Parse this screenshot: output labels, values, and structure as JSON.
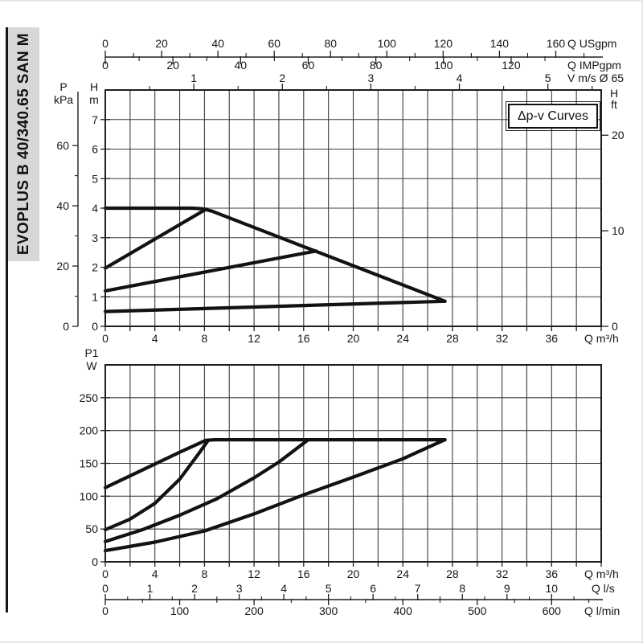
{
  "sidebar": {
    "model": "EVOPLUS B 40/340.65 SAN M",
    "bg": "#d7d7d7",
    "rule_color": "#161616"
  },
  "colors": {
    "curve": "#121212",
    "grid": "#3c3c3c",
    "border": "#1f1f1f",
    "text": "#161616"
  },
  "chart_data": [
    {
      "id": "head-vs-flow",
      "type": "line",
      "annotation": "Δp-v Curves",
      "xlim": [
        0,
        40
      ],
      "ylim": [
        0,
        8
      ],
      "grid": {
        "x_step": 2,
        "y_step": 1
      },
      "axes": {
        "x_bottom": {
          "unit": "Q m³/h",
          "tick_labels": [
            0,
            4,
            8,
            12,
            16,
            20,
            24,
            28,
            32,
            36
          ],
          "tick_step": 2
        },
        "x_usgpm": {
          "unit": "Q USgpm",
          "tick_labels": [
            0,
            20,
            40,
            60,
            80,
            100,
            120,
            140,
            160
          ],
          "minor_step": 10,
          "to_m3h": 0.2271
        },
        "x_impgpm": {
          "unit": "Q IMPgpm",
          "tick_labels": [
            0,
            20,
            40,
            60,
            80,
            100,
            120
          ],
          "minor_step": 10,
          "to_m3h": 0.2728
        },
        "x_velocity": {
          "unit": "V m/s Ø 65",
          "tick_labels": [
            1,
            2,
            3,
            4,
            5
          ],
          "minor_step": 0.5,
          "to_m3h": 7.14
        },
        "y_kpa": {
          "unit_lines": [
            "P",
            "kPa"
          ],
          "tick_labels": [
            0,
            20,
            40,
            60
          ],
          "minor_step": 10,
          "to_m": 0.102
        },
        "y_m": {
          "unit_lines": [
            "H",
            "m"
          ],
          "tick_labels": [
            0,
            1,
            2,
            3,
            4,
            5,
            6,
            7
          ]
        },
        "y_ft": {
          "unit_lines": [
            "H",
            "ft"
          ],
          "tick_labels": [
            0,
            10,
            20
          ],
          "to_m": 0.3235
        }
      },
      "series": [
        {
          "name": "max-speed",
          "points": [
            [
              0,
              4.0
            ],
            [
              7.0,
              4.0
            ],
            [
              7.8,
              3.98
            ],
            [
              8.6,
              3.9
            ],
            [
              27.4,
              0.85
            ]
          ]
        },
        {
          "name": "dpv-line-1",
          "points": [
            [
              0,
              1.97
            ],
            [
              8.15,
              3.97
            ]
          ]
        },
        {
          "name": "dpv-line-2",
          "points": [
            [
              0,
              1.2
            ],
            [
              17.0,
              2.55
            ]
          ]
        },
        {
          "name": "dpv-line-3",
          "points": [
            [
              0,
              0.5
            ],
            [
              27.4,
              0.85
            ]
          ]
        }
      ]
    },
    {
      "id": "power-vs-flow",
      "type": "line",
      "xlim": [
        0,
        40
      ],
      "ylim": [
        0,
        300
      ],
      "grid": {
        "x_step": 2,
        "y_step": 50
      },
      "axes": {
        "x_bottom": {
          "unit": "Q m³/h",
          "tick_labels": [
            0,
            4,
            8,
            12,
            16,
            20,
            24,
            28,
            32,
            36
          ],
          "tick_step": 2
        },
        "x_ls": {
          "unit": "Q l/s",
          "tick_labels": [
            0,
            1,
            2,
            3,
            4,
            5,
            6,
            7,
            8,
            9,
            10
          ],
          "minor_step": 0.5,
          "to_m3h": 3.6
        },
        "x_lmin": {
          "unit": "Q l/min",
          "tick_labels": [
            0,
            100,
            200,
            300,
            400,
            500,
            600
          ],
          "minor_step": 50,
          "to_m3h": 0.06
        },
        "y_w": {
          "unit_lines": [
            "P1",
            "W"
          ],
          "tick_labels": [
            0,
            50,
            100,
            150,
            200,
            250
          ]
        }
      },
      "series": [
        {
          "name": "p1-max-speed",
          "points": [
            [
              0,
              113
            ],
            [
              3,
              140
            ],
            [
              6,
              167
            ],
            [
              8.1,
              185
            ],
            [
              8.8,
              186
            ],
            [
              27.4,
              186
            ]
          ]
        },
        {
          "name": "p1-dpv-1",
          "points": [
            [
              0,
              49
            ],
            [
              2,
              65
            ],
            [
              4,
              89
            ],
            [
              6,
              126
            ],
            [
              7.5,
              164
            ],
            [
              8.3,
              185
            ]
          ]
        },
        {
          "name": "p1-dpv-2",
          "points": [
            [
              0,
              31
            ],
            [
              3,
              49
            ],
            [
              6,
              71
            ],
            [
              9,
              96
            ],
            [
              12,
              128
            ],
            [
              14,
              152
            ],
            [
              16.3,
              185
            ]
          ]
        },
        {
          "name": "p1-dpv-3",
          "points": [
            [
              0,
              17
            ],
            [
              4,
              30
            ],
            [
              8,
              47
            ],
            [
              12,
              73
            ],
            [
              16,
              102
            ],
            [
              20,
              129
            ],
            [
              24,
              157
            ],
            [
              27.4,
              186
            ]
          ]
        }
      ]
    }
  ]
}
